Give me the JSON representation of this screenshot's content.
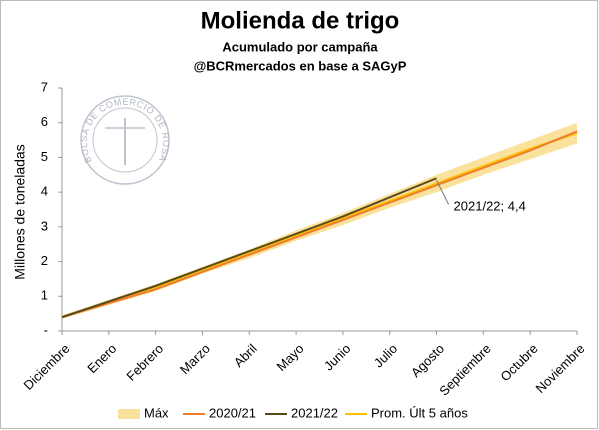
{
  "chart_data": {
    "type": "line",
    "title": "Molienda de trigo",
    "subtitle": "Acumulado por campaña",
    "source": "@BCRmercados en base a SAGyP",
    "logo_text": "BOLSA DE COMERCIO DE ROSARIO",
    "y_label": "Millones de toneladas",
    "categories": [
      "Diciembre",
      "Enero",
      "Febrero",
      "Marzo",
      "Abril",
      "Mayo",
      "Junio",
      "Julio",
      "Agosto",
      "Septiembre",
      "Octubre",
      "Noviembre"
    ],
    "band": {
      "name": "Máx",
      "color": "#fbe29c",
      "values": [
        0.45,
        0.9,
        1.35,
        1.85,
        2.35,
        2.9,
        3.4,
        3.95,
        4.5,
        5.0,
        5.5,
        6.0
      ],
      "low": [
        0.35,
        0.75,
        1.15,
        1.65,
        2.1,
        2.6,
        3.05,
        3.55,
        4.0,
        4.5,
        4.95,
        5.4
      ]
    },
    "series": [
      {
        "name": "2020/21",
        "color": "#ed7d31",
        "values": [
          0.4,
          0.8,
          1.2,
          1.7,
          2.2,
          2.7,
          3.2,
          3.7,
          4.2,
          4.7,
          5.2,
          5.75
        ]
      },
      {
        "name": "2021/22",
        "color": "#5b4a1c",
        "values": [
          0.4,
          0.85,
          1.3,
          1.8,
          2.3,
          2.8,
          3.3,
          3.85,
          4.4,
          null,
          null,
          null
        ]
      },
      {
        "name": "Prom. Últ 5 años",
        "color": "#ffc000",
        "values": [
          0.4,
          0.8,
          1.25,
          1.75,
          2.25,
          2.75,
          3.25,
          3.75,
          4.25,
          4.75,
          5.25,
          5.7
        ]
      }
    ],
    "annotation": "2021/22; 4,4",
    "ylim": [
      0,
      7
    ],
    "yticks": [
      {
        "value": 0,
        "label": "-"
      },
      1,
      2,
      3,
      4,
      5,
      6,
      7
    ]
  }
}
